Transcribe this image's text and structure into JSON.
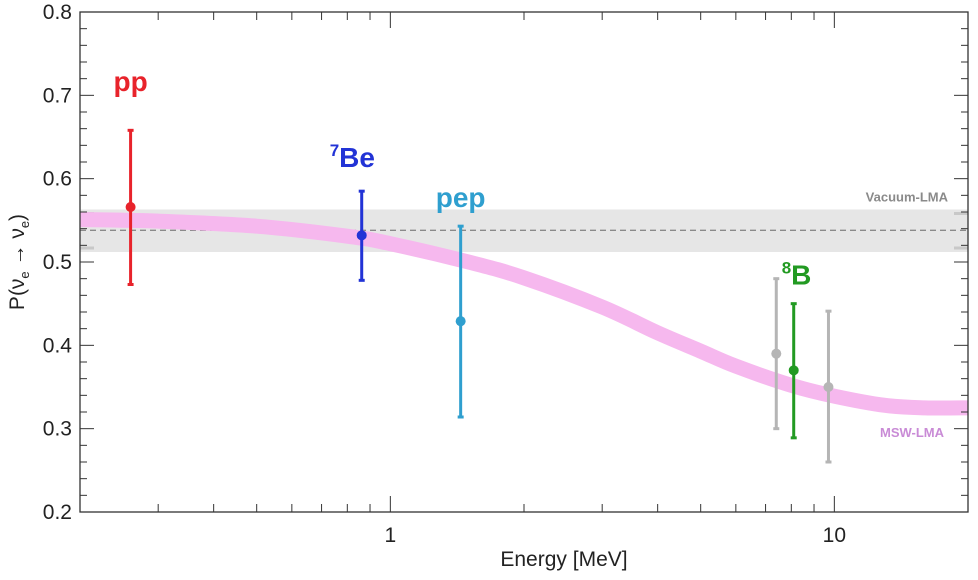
{
  "chart_data": {
    "type": "scatter",
    "title": "",
    "xlabel": "Energy [MeV]",
    "ylabel": {
      "prefix": "P(",
      "nu1": "ν",
      "sub1": "e",
      "arrow": " → ",
      "nu2": "ν",
      "sub2": "e",
      "suffix": ")"
    },
    "xscale": "log",
    "xlim": [
      0.2,
      20
    ],
    "ylim": [
      0.2,
      0.8
    ],
    "x_ticks": [
      {
        "value": 1,
        "label": "1"
      },
      {
        "value": 10,
        "label": "10"
      }
    ],
    "y_ticks": [
      {
        "value": 0.2,
        "label": "0.2"
      },
      {
        "value": 0.3,
        "label": "0.3"
      },
      {
        "value": 0.4,
        "label": "0.4"
      },
      {
        "value": 0.5,
        "label": "0.5"
      },
      {
        "value": 0.6,
        "label": "0.6"
      },
      {
        "value": 0.7,
        "label": "0.7"
      },
      {
        "value": 0.8,
        "label": "0.8"
      }
    ],
    "vacuum_lma": {
      "label": "Vacuum-LMA",
      "central": 0.538,
      "low": 0.512,
      "high": 0.563,
      "color": "#e6e6e6",
      "line_color": "#8a8a8a",
      "label_color": "#8a8a8a"
    },
    "msw_lma": {
      "label": "MSW-LMA",
      "color": "#f6b8ee",
      "label_color": "#c98bd6",
      "x": [
        0.2,
        0.3,
        0.5,
        0.8,
        1.0,
        1.5,
        2.0,
        3.0,
        4.0,
        5.0,
        6.0,
        8.0,
        10.0,
        13.0,
        16.0,
        20.0
      ],
      "center": [
        0.551,
        0.549,
        0.543,
        0.531,
        0.522,
        0.5,
        0.481,
        0.446,
        0.415,
        0.393,
        0.375,
        0.352,
        0.339,
        0.328,
        0.325,
        0.325
      ],
      "half_width": 0.009
    },
    "points": [
      {
        "name": "pp",
        "label": "pp",
        "sup": "",
        "x": 0.26,
        "y": 0.566,
        "err_low": 0.473,
        "err_high": 0.658,
        "color": "#e8232b"
      },
      {
        "name": "be7",
        "label": "Be",
        "sup": "7",
        "x": 0.862,
        "y": 0.532,
        "err_low": 0.478,
        "err_high": 0.585,
        "color": "#2233d6"
      },
      {
        "name": "pep",
        "label": "pep",
        "sup": "",
        "x": 1.44,
        "y": 0.429,
        "err_low": 0.314,
        "err_high": 0.543,
        "color": "#2f9fcf"
      },
      {
        "name": "b8",
        "label": "B",
        "sup": "8",
        "x": 8.1,
        "y": 0.37,
        "err_low": 0.289,
        "err_high": 0.45,
        "color": "#229a22"
      },
      {
        "name": "b8-gray-1",
        "label": "",
        "sup": "",
        "x": 7.4,
        "y": 0.39,
        "err_low": 0.3,
        "err_high": 0.48,
        "color": "#b5b5b5"
      },
      {
        "name": "b8-gray-2",
        "label": "",
        "sup": "",
        "x": 9.7,
        "y": 0.35,
        "err_low": 0.26,
        "err_high": 0.441,
        "color": "#b5b5b5"
      }
    ]
  }
}
